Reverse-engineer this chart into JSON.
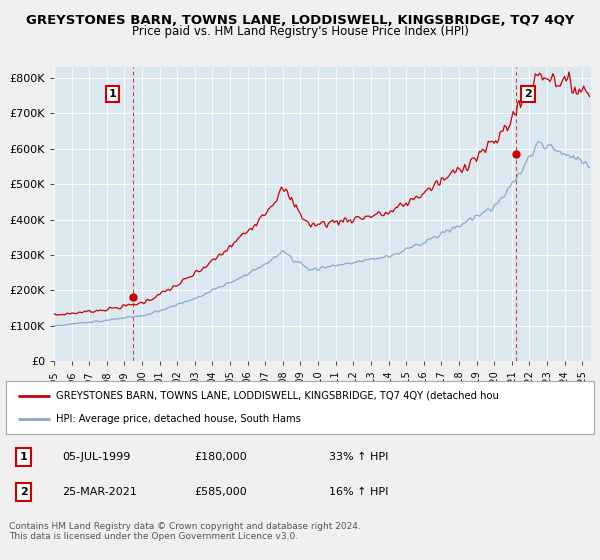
{
  "title": "GREYSTONES BARN, TOWNS LANE, LODDISWELL, KINGSBRIDGE, TQ7 4QY",
  "subtitle": "Price paid vs. HM Land Registry's House Price Index (HPI)",
  "background_color": "#f0f0f0",
  "plot_bg_color": "#dce8f0",
  "ylim": [
    0,
    830000
  ],
  "yticks": [
    0,
    100000,
    200000,
    300000,
    400000,
    500000,
    600000,
    700000,
    800000
  ],
  "ytick_labels": [
    "£0",
    "£100K",
    "£200K",
    "£300K",
    "£400K",
    "£500K",
    "£600K",
    "£700K",
    "£800K"
  ],
  "xlim_start": 1995.0,
  "xlim_end": 2025.5,
  "purchase1_x": 1999.51,
  "purchase1_y": 180000,
  "purchase2_x": 2021.23,
  "purchase2_y": 585000,
  "red_line_color": "#cc0000",
  "blue_line_color": "#88aacc",
  "dashed_line_color": "#cc0000",
  "legend_property_label": "GREYSTONES BARN, TOWNS LANE, LODDISWELL, KINGSBRIDGE, TQ7 4QY (detached hou",
  "legend_hpi_label": "HPI: Average price, detached house, South Hams",
  "table_row1": [
    "1",
    "05-JUL-1999",
    "£180,000",
    "33% ↑ HPI"
  ],
  "table_row2": [
    "2",
    "25-MAR-2021",
    "£585,000",
    "16% ↑ HPI"
  ],
  "footer": "Contains HM Land Registry data © Crown copyright and database right 2024.\nThis data is licensed under the Open Government Licence v3.0.",
  "xtick_years": [
    1995,
    1996,
    1997,
    1998,
    1999,
    2000,
    2001,
    2002,
    2003,
    2004,
    2005,
    2006,
    2007,
    2008,
    2009,
    2010,
    2011,
    2012,
    2013,
    2014,
    2015,
    2016,
    2017,
    2018,
    2019,
    2020,
    2021,
    2022,
    2023,
    2024,
    2025
  ]
}
